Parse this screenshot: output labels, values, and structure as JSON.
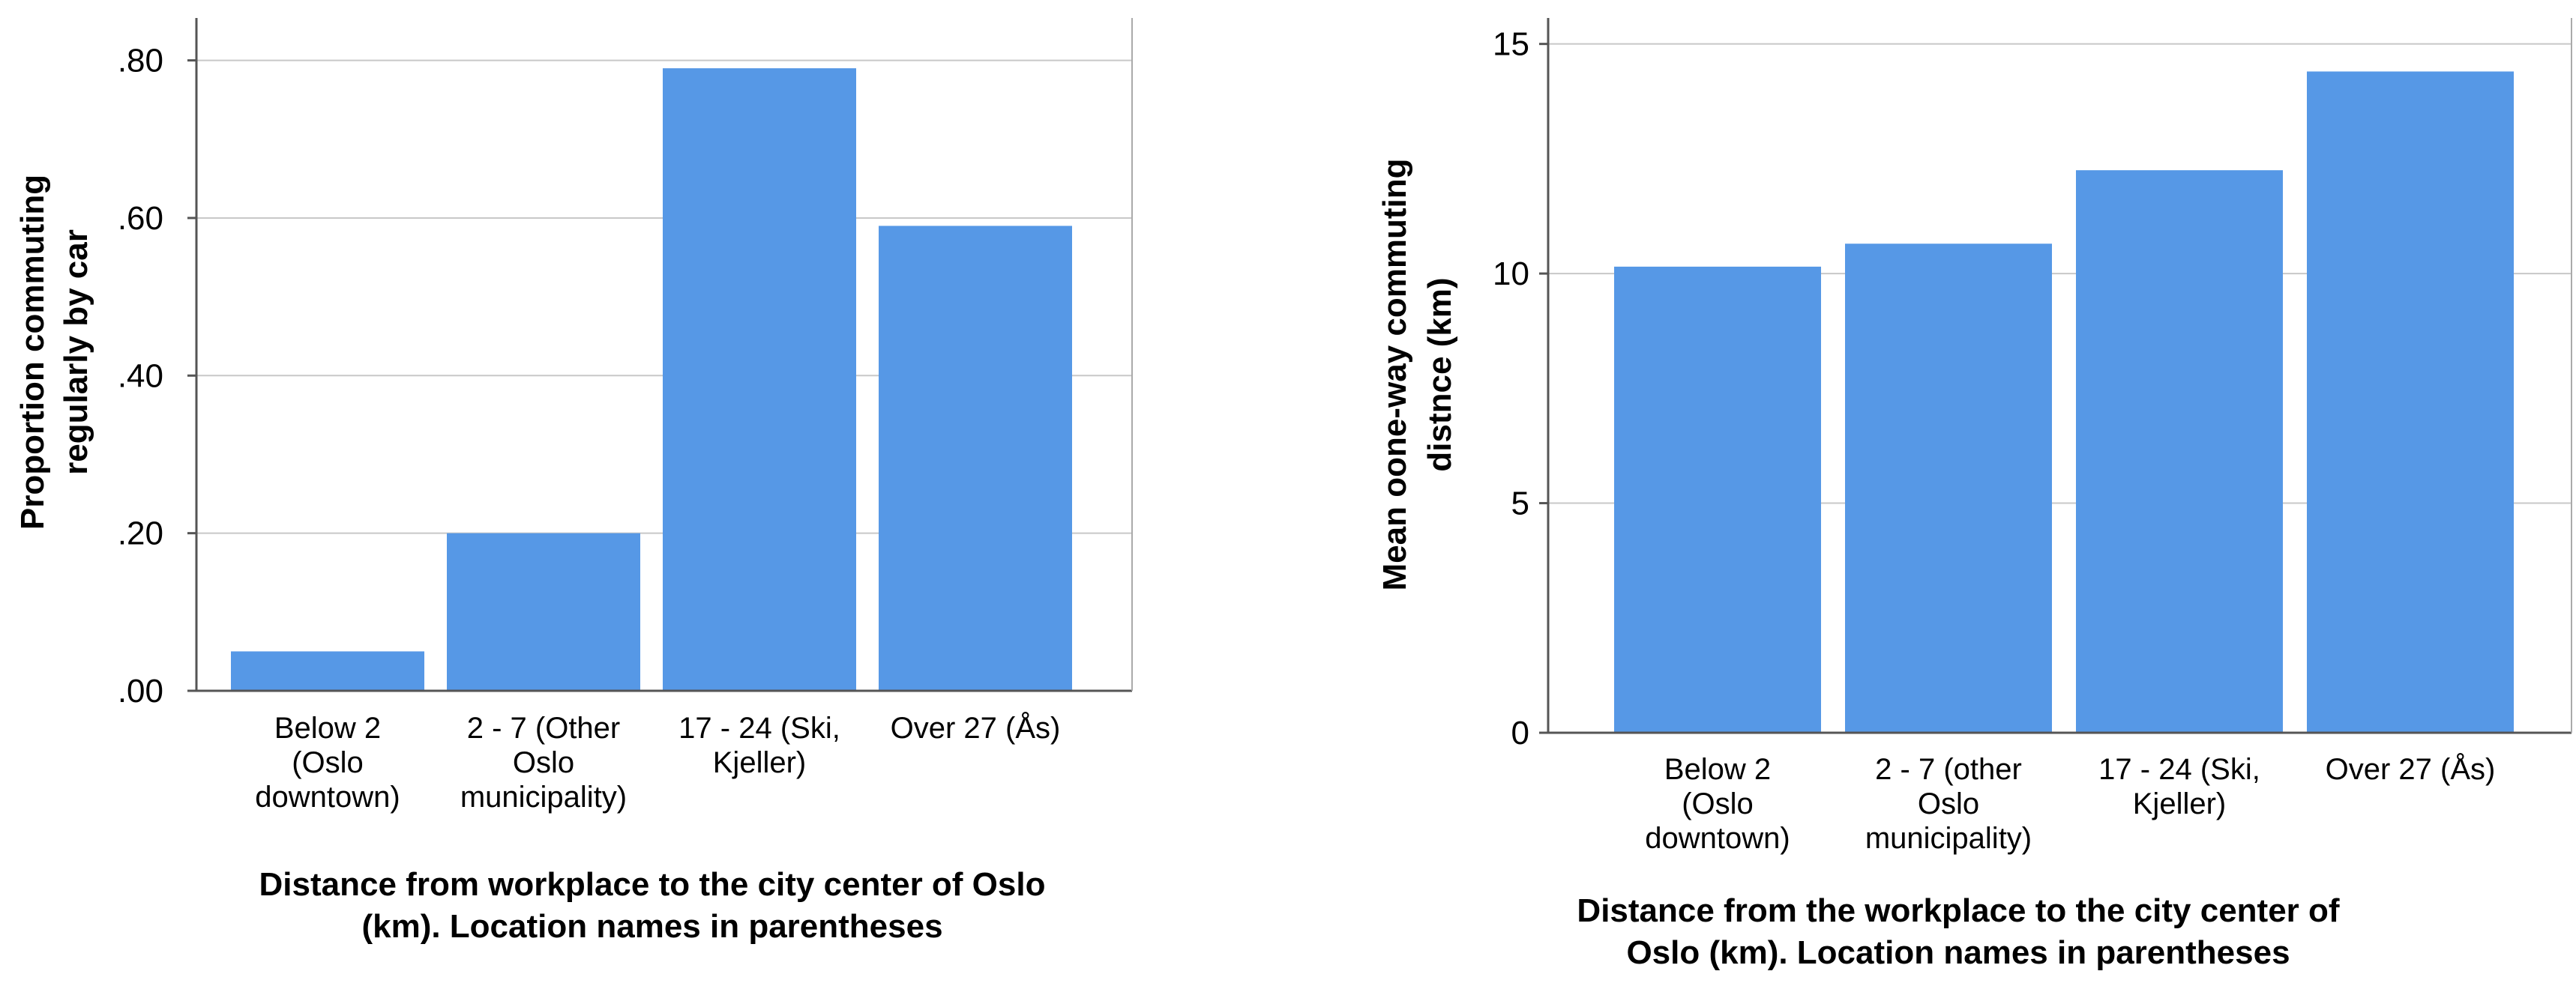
{
  "chart_data": [
    {
      "type": "bar",
      "title": "",
      "categories": [
        [
          "Below 2",
          "(Oslo",
          "downtown)"
        ],
        [
          "2 - 7 (Other",
          "Oslo",
          "municipality)"
        ],
        [
          "17 - 24 (Ski,",
          "Kjeller)"
        ],
        [
          "Over 27 (Ås)"
        ]
      ],
      "values": [
        0.05,
        0.2,
        0.79,
        0.59
      ],
      "ylim": [
        0,
        0.85
      ],
      "yticks": [
        0,
        0.2,
        0.4,
        0.6,
        0.8
      ],
      "ytick_labels": [
        ".00",
        ".20",
        ".40",
        ".60",
        ".80"
      ],
      "ylabel": [
        "Proportion commuting",
        "regularly by car"
      ],
      "xlabel": [
        "Distance from workplace to the city center of Oslo",
        "(km). Location names in parentheses"
      ],
      "grid": true,
      "bar_color": "#5698e6"
    },
    {
      "type": "bar",
      "title": "",
      "categories": [
        [
          "Below 2",
          "(Oslo",
          "downtown)"
        ],
        [
          "2 - 7 (other",
          "Oslo",
          "municipality)"
        ],
        [
          "17 - 24 (Ski,",
          "Kjeller)"
        ],
        [
          "Over 27 (Ås)"
        ]
      ],
      "values": [
        10.15,
        10.65,
        12.25,
        14.4
      ],
      "ylim": [
        0,
        15.5
      ],
      "yticks": [
        0,
        5,
        10,
        15
      ],
      "ytick_labels": [
        "0",
        "5",
        "10",
        "15"
      ],
      "ylabel": [
        "Mean oone-way commuting",
        "distnce (km)"
      ],
      "xlabel": [
        "Distance from the workplace to the city center of",
        "Oslo (km). Location names in parentheses"
      ],
      "grid": true,
      "bar_color": "#5698e6"
    }
  ]
}
